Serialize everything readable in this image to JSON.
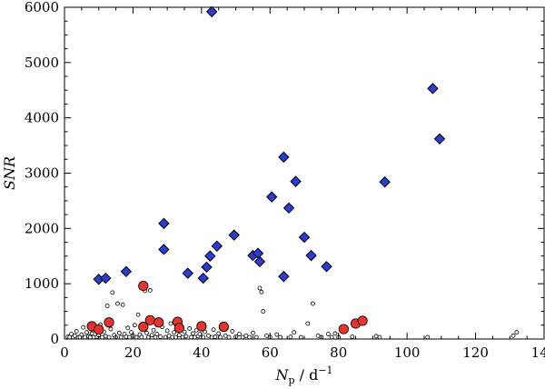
{
  "chart_data": {
    "type": "scatter",
    "xlabel": "N_p / d^-1",
    "ylabel": "SNR",
    "xlim": [
      0,
      140
    ],
    "ylim": [
      0,
      6000
    ],
    "xticks": [
      0,
      20,
      40,
      60,
      80,
      100,
      120,
      140
    ],
    "yticks": [
      0,
      1000,
      2000,
      3000,
      4000,
      5000,
      6000
    ],
    "grid": false,
    "series": [
      {
        "marker": "diamond",
        "color": "#2a3cd6",
        "points": [
          [
            10,
            1080
          ],
          [
            12,
            1100
          ],
          [
            18,
            1220
          ],
          [
            29,
            2090
          ],
          [
            29,
            1620
          ],
          [
            36,
            1190
          ],
          [
            40.5,
            1100
          ],
          [
            41.5,
            1300
          ],
          [
            42.5,
            1500
          ],
          [
            44.5,
            1680
          ],
          [
            43,
            5920
          ],
          [
            49.5,
            1880
          ],
          [
            55,
            1510
          ],
          [
            56.5,
            1550
          ],
          [
            57,
            1400
          ],
          [
            60.5,
            2570
          ],
          [
            64,
            3290
          ],
          [
            65.5,
            2370
          ],
          [
            64,
            1130
          ],
          [
            67.5,
            2850
          ],
          [
            70,
            1840
          ],
          [
            72,
            1510
          ],
          [
            76.5,
            1310
          ],
          [
            93.5,
            2840
          ],
          [
            107.5,
            4530
          ],
          [
            109.5,
            3620
          ]
        ]
      },
      {
        "marker": "circle-filled",
        "color": "#e8322c",
        "points": [
          [
            8,
            230
          ],
          [
            10,
            170
          ],
          [
            13,
            300
          ],
          [
            23,
            960
          ],
          [
            23,
            220
          ],
          [
            25,
            340
          ],
          [
            27.5,
            300
          ],
          [
            33,
            310
          ],
          [
            33.5,
            200
          ],
          [
            40,
            230
          ],
          [
            46.5,
            220
          ],
          [
            81.5,
            180
          ],
          [
            85,
            280
          ],
          [
            87,
            330
          ]
        ]
      },
      {
        "marker": "circle-open",
        "color": "#000000",
        "points": [
          [
            1,
            40
          ],
          [
            1.5,
            10
          ],
          [
            2,
            90
          ],
          [
            2.5,
            20
          ],
          [
            3,
            60
          ],
          [
            3.5,
            140
          ],
          [
            4,
            30
          ],
          [
            4.5,
            5
          ],
          [
            5,
            80
          ],
          [
            5.5,
            210
          ],
          [
            6,
            20
          ],
          [
            6.5,
            120
          ],
          [
            7,
            50
          ],
          [
            7.5,
            0
          ],
          [
            8,
            100
          ],
          [
            8.5,
            15
          ],
          [
            9,
            160
          ],
          [
            9.5,
            40
          ],
          [
            10,
            70
          ],
          [
            10.5,
            260
          ],
          [
            11,
            10
          ],
          [
            11.5,
            130
          ],
          [
            12,
            50
          ],
          [
            12.5,
            600
          ],
          [
            13,
            20
          ],
          [
            13.5,
            180
          ],
          [
            14,
            840
          ],
          [
            14.5,
            70
          ],
          [
            15,
            30
          ],
          [
            15.5,
            640
          ],
          [
            16,
            110
          ],
          [
            16.5,
            10
          ],
          [
            17,
            620
          ],
          [
            17.5,
            90
          ],
          [
            18,
            40
          ],
          [
            18.5,
            200
          ],
          [
            19,
            15
          ],
          [
            19.5,
            120
          ],
          [
            20,
            60
          ],
          [
            20.5,
            250
          ],
          [
            21,
            25
          ],
          [
            21.5,
            440
          ],
          [
            22,
            80
          ],
          [
            22.5,
            30
          ],
          [
            23.5,
            870
          ],
          [
            24,
            110
          ],
          [
            24.5,
            20
          ],
          [
            25,
            880
          ],
          [
            25.5,
            70
          ],
          [
            26,
            160
          ],
          [
            26.5,
            15
          ],
          [
            27,
            90
          ],
          [
            28,
            40
          ],
          [
            28.5,
            220
          ],
          [
            29.5,
            20
          ],
          [
            30,
            150
          ],
          [
            30.5,
            60
          ],
          [
            31,
            280
          ],
          [
            31.5,
            30
          ],
          [
            32,
            120
          ],
          [
            32.5,
            10
          ],
          [
            33.5,
            70
          ],
          [
            34,
            240
          ],
          [
            34.5,
            20
          ],
          [
            35,
            130
          ],
          [
            35.5,
            50
          ],
          [
            36.5,
            190
          ],
          [
            37,
            30
          ],
          [
            37.5,
            100
          ],
          [
            38,
            10
          ],
          [
            38.5,
            160
          ],
          [
            39,
            50
          ],
          [
            39.5,
            90
          ],
          [
            40.5,
            20
          ],
          [
            41,
            130
          ],
          [
            42,
            60
          ],
          [
            43,
            10
          ],
          [
            43.5,
            170
          ],
          [
            44,
            40
          ],
          [
            45,
            100
          ],
          [
            45.5,
            20
          ],
          [
            47,
            60
          ],
          [
            48,
            15
          ],
          [
            49,
            140
          ],
          [
            50,
            40
          ],
          [
            51,
            90
          ],
          [
            52,
            20
          ],
          [
            53,
            60
          ],
          [
            54,
            10
          ],
          [
            55,
            110
          ],
          [
            56,
            30
          ],
          [
            57,
            920
          ],
          [
            57.5,
            850
          ],
          [
            58,
            500
          ],
          [
            59,
            60
          ],
          [
            60,
            20
          ],
          [
            62,
            80
          ],
          [
            63,
            15
          ],
          [
            66,
            40
          ],
          [
            67,
            120
          ],
          [
            69,
            20
          ],
          [
            71,
            280
          ],
          [
            72.5,
            640
          ],
          [
            74,
            60
          ],
          [
            75,
            10
          ],
          [
            77,
            90
          ],
          [
            78,
            30
          ],
          [
            79,
            100
          ],
          [
            80,
            20
          ],
          [
            84,
            40
          ],
          [
            91,
            50
          ],
          [
            92,
            10
          ],
          [
            106,
            25
          ],
          [
            131,
            60
          ],
          [
            132,
            120
          ]
        ]
      }
    ]
  }
}
